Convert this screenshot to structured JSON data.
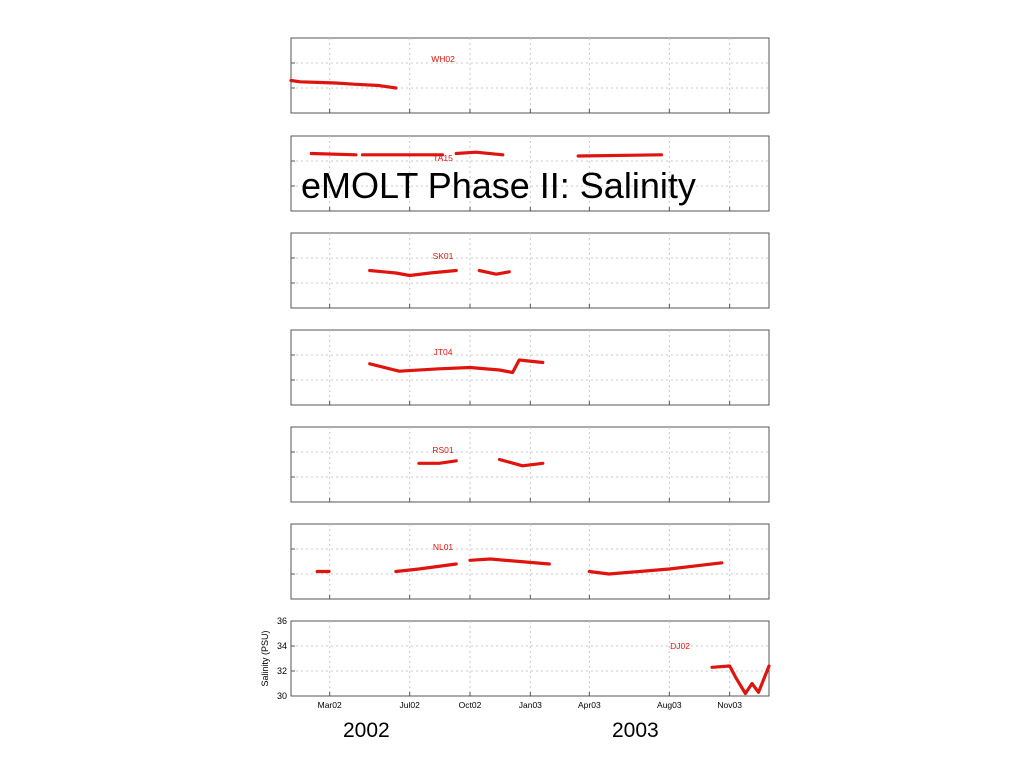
{
  "slide": {
    "title": "eMOLT Phase II: Salinity",
    "year_labels": [
      "2002",
      "2003"
    ]
  },
  "colors": {
    "series": "#e0140f",
    "grid": "#c8c8c8",
    "frame": "#555555"
  },
  "chart_data": {
    "type": "line",
    "title": "",
    "xlabel": "",
    "ylabel": "Salinity (PSU)",
    "ylim": [
      30,
      36
    ],
    "yticks": [
      30,
      32,
      34,
      36
    ],
    "grid": true,
    "x_range": [
      "2002-01-01",
      "2003-12-31"
    ],
    "x_ticks": [
      {
        "label": "Mar02",
        "date": "2002-03-01"
      },
      {
        "label": "Jul02",
        "date": "2002-07-01"
      },
      {
        "label": "Oct02",
        "date": "2002-10-01"
      },
      {
        "label": "Jan03",
        "date": "2003-01-01"
      },
      {
        "label": "Apr03",
        "date": "2003-04-01"
      },
      {
        "label": "Aug03",
        "date": "2003-08-01"
      },
      {
        "label": "Nov03",
        "date": "2003-11-01"
      }
    ],
    "panels": [
      {
        "site": "WH02",
        "segments": [
          [
            [
              "2002-01-01",
              32.6
            ],
            [
              "2002-01-15",
              32.5
            ],
            [
              "2002-02-10",
              32.45
            ],
            [
              "2002-03-10",
              32.4
            ],
            [
              "2002-04-10",
              32.3
            ],
            [
              "2002-05-15",
              32.2
            ],
            [
              "2002-06-10",
              32.0
            ]
          ]
        ]
      },
      {
        "site": "TA15",
        "segments": [
          [
            [
              "2002-02-01",
              34.6
            ],
            [
              "2002-04-10",
              34.5
            ]
          ],
          [
            [
              "2002-04-20",
              34.5
            ],
            [
              "2002-08-20",
              34.5
            ]
          ],
          [
            [
              "2002-09-10",
              34.6
            ],
            [
              "2002-10-10",
              34.7
            ],
            [
              "2002-11-20",
              34.5
            ]
          ],
          [
            [
              "2003-03-15",
              34.4
            ],
            [
              "2003-07-20",
              34.5
            ]
          ]
        ]
      },
      {
        "site": "SK01",
        "segments": [
          [
            [
              "2002-05-01",
              33.0
            ],
            [
              "2002-06-10",
              32.8
            ],
            [
              "2002-07-01",
              32.6
            ],
            [
              "2002-08-01",
              32.8
            ],
            [
              "2002-09-10",
              33.0
            ]
          ],
          [
            [
              "2002-10-15",
              33.0
            ],
            [
              "2002-11-10",
              32.7
            ],
            [
              "2002-11-30",
              32.9
            ]
          ]
        ]
      },
      {
        "site": "JT04",
        "segments": [
          [
            [
              "2002-05-01",
              33.3
            ],
            [
              "2002-06-15",
              32.7
            ],
            [
              "2002-08-15",
              32.9
            ],
            [
              "2002-10-01",
              33.0
            ],
            [
              "2002-11-15",
              32.8
            ],
            [
              "2002-12-05",
              32.6
            ],
            [
              "2002-12-15",
              33.6
            ],
            [
              "2003-01-20",
              33.4
            ]
          ]
        ]
      },
      {
        "site": "RS01",
        "segments": [
          [
            [
              "2002-07-15",
              33.1
            ],
            [
              "2002-08-15",
              33.1
            ],
            [
              "2002-09-10",
              33.3
            ]
          ],
          [
            [
              "2002-11-15",
              33.4
            ],
            [
              "2002-12-20",
              32.9
            ],
            [
              "2003-01-20",
              33.1
            ]
          ]
        ]
      },
      {
        "site": "NL01",
        "segments": [
          [
            [
              "2002-02-10",
              32.2
            ],
            [
              "2002-02-28",
              32.2
            ]
          ],
          [
            [
              "2002-06-10",
              32.2
            ],
            [
              "2002-07-15",
              32.4
            ],
            [
              "2002-09-10",
              32.8
            ]
          ],
          [
            [
              "2002-10-01",
              33.1
            ],
            [
              "2002-11-01",
              33.2
            ],
            [
              "2003-01-30",
              32.8
            ]
          ],
          [
            [
              "2003-04-01",
              32.2
            ],
            [
              "2003-05-01",
              32.0
            ],
            [
              "2003-08-01",
              32.4
            ],
            [
              "2003-10-20",
              32.9
            ]
          ]
        ]
      },
      {
        "site": "DJ02",
        "segments": [
          [
            [
              "2003-10-05",
              32.3
            ],
            [
              "2003-11-01",
              32.4
            ],
            [
              "2003-11-10",
              31.5
            ],
            [
              "2003-11-25",
              30.2
            ],
            [
              "2003-12-05",
              31.0
            ],
            [
              "2003-12-15",
              30.3
            ],
            [
              "2003-12-31",
              32.4
            ]
          ]
        ]
      }
    ]
  }
}
